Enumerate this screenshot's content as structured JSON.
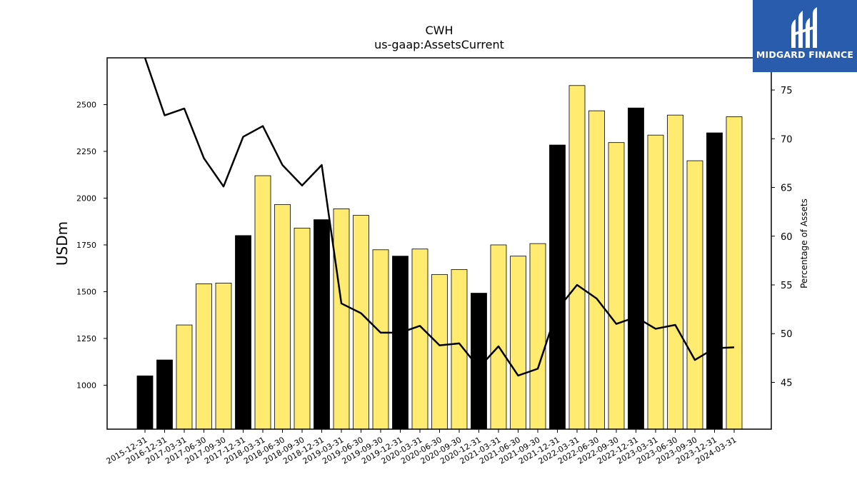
{
  "logo": {
    "text": "MIDGARD FINANCE",
    "bg_color": "#2a5cad"
  },
  "chart_data": {
    "type": "bar",
    "title": "CWH",
    "subtitle": "us-gaap:AssetsCurrent",
    "ylabel": "USDm",
    "y2label": "Percentage of Assets",
    "ylim": [
      765,
      2750
    ],
    "y2lim": [
      40.2,
      78.3
    ],
    "yticks": [
      1000,
      1250,
      1500,
      1750,
      2000,
      2250,
      2500
    ],
    "y2ticks": [
      45,
      50,
      55,
      60,
      65,
      70,
      75
    ],
    "grid": false,
    "colors": {
      "annual": "#000000",
      "quarterly": "#ffeb70",
      "line": "#000000"
    },
    "categories": [
      "2015-12-31",
      "2016-12-31",
      "2017-03-31",
      "2017-06-30",
      "2017-09-30",
      "2017-12-31",
      "2018-03-31",
      "2018-06-30",
      "2018-09-30",
      "2018-12-31",
      "2019-03-31",
      "2019-06-30",
      "2019-09-30",
      "2019-12-31",
      "2020-03-31",
      "2020-06-30",
      "2020-09-30",
      "2020-12-31",
      "2021-03-31",
      "2021-06-30",
      "2021-09-30",
      "2021-12-31",
      "2022-03-31",
      "2022-06-30",
      "2022-09-30",
      "2022-12-31",
      "2023-03-31",
      "2023-06-30",
      "2023-09-30",
      "2023-12-31",
      "2024-03-31"
    ],
    "series": [
      {
        "type": "bar",
        "values": [
          1050,
          1135,
          1322,
          1542,
          1546,
          1800,
          2120,
          1966,
          1840,
          1885,
          1943,
          1908,
          1724,
          1690,
          1728,
          1592,
          1618,
          1492,
          1750,
          1690,
          1757,
          2284,
          2602,
          2467,
          2297,
          2482,
          2337,
          2444,
          2200,
          2349,
          2435
        ],
        "kinds": [
          "A",
          "A",
          "Q",
          "Q",
          "Q",
          "A",
          "Q",
          "Q",
          "Q",
          "A",
          "Q",
          "Q",
          "Q",
          "A",
          "Q",
          "Q",
          "Q",
          "A",
          "Q",
          "Q",
          "Q",
          "A",
          "Q",
          "Q",
          "Q",
          "A",
          "Q",
          "Q",
          "Q",
          "A",
          "Q"
        ]
      },
      {
        "type": "line",
        "axis": "right",
        "values": [
          78.3,
          72.4,
          73.1,
          68.0,
          65.1,
          70.2,
          71.3,
          67.3,
          65.2,
          67.3,
          53.1,
          52.1,
          50.1,
          50.1,
          50.8,
          48.8,
          49.0,
          46.5,
          48.7,
          45.7,
          46.4,
          52.5,
          55.0,
          53.6,
          51.0,
          51.7,
          50.5,
          50.9,
          47.3,
          48.5,
          48.6
        ]
      }
    ]
  }
}
